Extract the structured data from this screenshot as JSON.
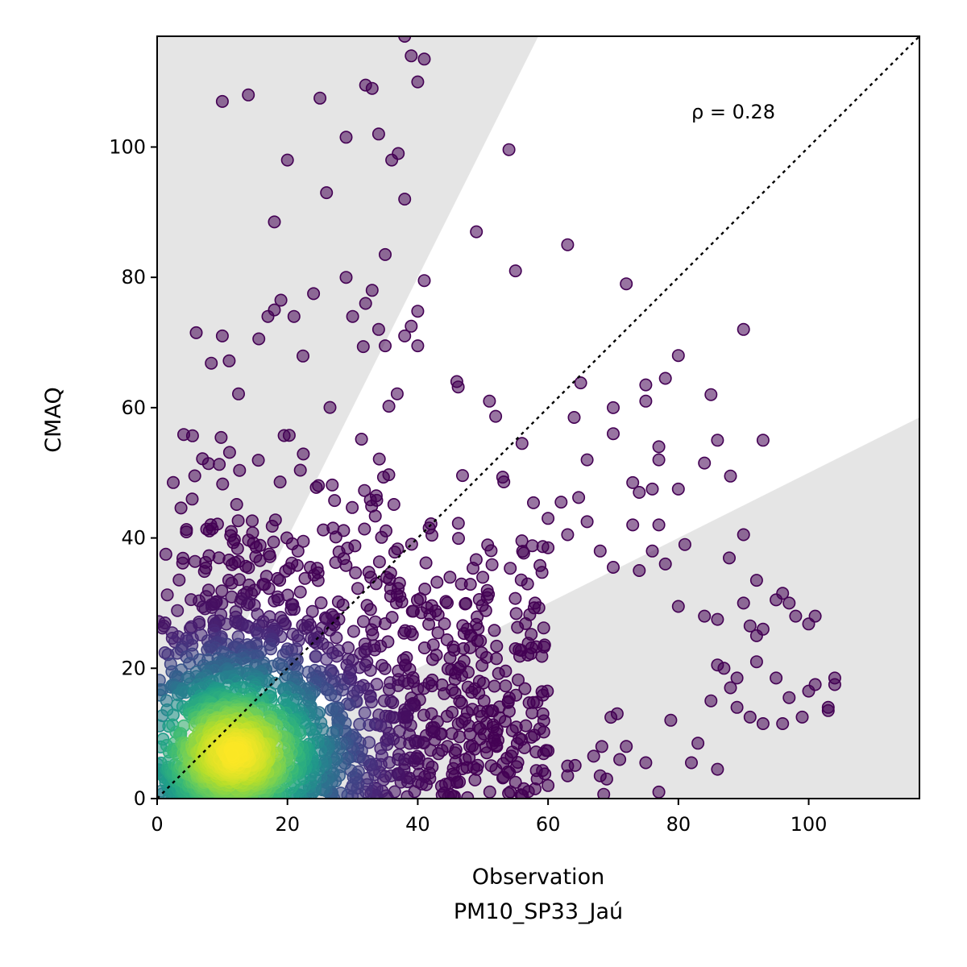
{
  "chart_data": {
    "type": "scatter",
    "title": "",
    "xlabel": "Observation",
    "xlabel_line2": "PM10_SP33_Jaú",
    "ylabel": "CMAQ",
    "xlim": [
      0,
      117
    ],
    "ylim": [
      0,
      117
    ],
    "xticks": [
      0,
      20,
      40,
      60,
      80,
      100
    ],
    "yticks": [
      0,
      20,
      40,
      60,
      80,
      100
    ],
    "annotation": "ρ = 0.28",
    "grid": false,
    "legend": "none",
    "reference_line": {
      "type": "identity",
      "style": "dotted",
      "color": "#000000"
    },
    "shaded_regions": {
      "color": "#e5e5e5",
      "upper_wedge_slope_at_x117": 2.0,
      "lower_wedge_slope_at_x117": 0.5
    },
    "colormap": "viridis",
    "point_alpha": 0.55,
    "density_peak": [
      12,
      7
    ],
    "outliers": [
      [
        38,
        117
      ],
      [
        39,
        114
      ],
      [
        41,
        113.5
      ],
      [
        40,
        110
      ],
      [
        32,
        109.5
      ],
      [
        33,
        109
      ],
      [
        10,
        107
      ],
      [
        14,
        108
      ],
      [
        25,
        107.5
      ],
      [
        29,
        101.5
      ],
      [
        34,
        102
      ],
      [
        36,
        98
      ],
      [
        37,
        99
      ],
      [
        54,
        99.6
      ],
      [
        20,
        98
      ],
      [
        26,
        93
      ],
      [
        38,
        92
      ],
      [
        18,
        88.5
      ],
      [
        49,
        87
      ],
      [
        63,
        85
      ],
      [
        35,
        83.5
      ],
      [
        55,
        81
      ],
      [
        29,
        80
      ],
      [
        41,
        79.5
      ],
      [
        72,
        79
      ],
      [
        33,
        78
      ],
      [
        24,
        77.5
      ],
      [
        19,
        76.5
      ],
      [
        32,
        76
      ],
      [
        40,
        74.8
      ],
      [
        30,
        74
      ],
      [
        18,
        75
      ],
      [
        17,
        74
      ],
      [
        21,
        74
      ],
      [
        90,
        72
      ],
      [
        6,
        71.5
      ],
      [
        10,
        71
      ],
      [
        34,
        72
      ],
      [
        39,
        72.5
      ],
      [
        38,
        71
      ],
      [
        35,
        69.5
      ],
      [
        40,
        69.5
      ],
      [
        80,
        68
      ],
      [
        46,
        64
      ],
      [
        65,
        63.8
      ],
      [
        75,
        63.5
      ],
      [
        78,
        64.5
      ],
      [
        85,
        62
      ],
      [
        70,
        60
      ],
      [
        75,
        61
      ],
      [
        51,
        61
      ],
      [
        64,
        58.5
      ],
      [
        70,
        56
      ],
      [
        86,
        55
      ],
      [
        93,
        55
      ],
      [
        56,
        54.5
      ],
      [
        77,
        54
      ],
      [
        66,
        52
      ],
      [
        77,
        52
      ],
      [
        84,
        51.5
      ],
      [
        73,
        48.5
      ],
      [
        88,
        49.5
      ],
      [
        76,
        47.5
      ],
      [
        80,
        47.5
      ],
      [
        74,
        47
      ],
      [
        62,
        45.5
      ],
      [
        60,
        43
      ],
      [
        66,
        42.5
      ],
      [
        73,
        42
      ],
      [
        77,
        42
      ],
      [
        90,
        40.5
      ],
      [
        63,
        40.5
      ],
      [
        81,
        39
      ],
      [
        60,
        38.5
      ],
      [
        68,
        38
      ],
      [
        76,
        38
      ],
      [
        70,
        35.5
      ],
      [
        74,
        35
      ],
      [
        78,
        36
      ],
      [
        92,
        33.5
      ],
      [
        90,
        30
      ],
      [
        95,
        30.5
      ],
      [
        96,
        31.5
      ],
      [
        97,
        30
      ],
      [
        98,
        28
      ],
      [
        100,
        26.8
      ],
      [
        101,
        28
      ],
      [
        84,
        28
      ],
      [
        86,
        27.5
      ],
      [
        80,
        29.5
      ],
      [
        92,
        25
      ],
      [
        93,
        26
      ],
      [
        95,
        18.5
      ],
      [
        97,
        15.5
      ],
      [
        100,
        16.5
      ],
      [
        101,
        17.5
      ],
      [
        104,
        18.5
      ],
      [
        104,
        17.5
      ],
      [
        103,
        14
      ],
      [
        103,
        13.5
      ],
      [
        99,
        12.5
      ],
      [
        96,
        11.5
      ],
      [
        93,
        11.5
      ],
      [
        91,
        12.5
      ],
      [
        89,
        14
      ],
      [
        86,
        20.5
      ],
      [
        87,
        20
      ],
      [
        88,
        17
      ],
      [
        85,
        15
      ],
      [
        83,
        8.5
      ],
      [
        82,
        5.5
      ],
      [
        86,
        4.5
      ],
      [
        77,
        1
      ],
      [
        60,
        2
      ],
      [
        58,
        1.5
      ],
      [
        55,
        2.5
      ],
      [
        67,
        6.5
      ],
      [
        71,
        6
      ],
      [
        75,
        5.5
      ],
      [
        72,
        8
      ],
      [
        63,
        5
      ],
      [
        63,
        3.5
      ],
      [
        52,
        4.5
      ],
      [
        48,
        8
      ],
      [
        46,
        2.5
      ],
      [
        30,
        2
      ],
      [
        10,
        1.5
      ],
      [
        68,
        3.5
      ],
      [
        69,
        3
      ],
      [
        89,
        18.5
      ],
      [
        92,
        21
      ],
      [
        91,
        26.5
      ]
    ]
  }
}
